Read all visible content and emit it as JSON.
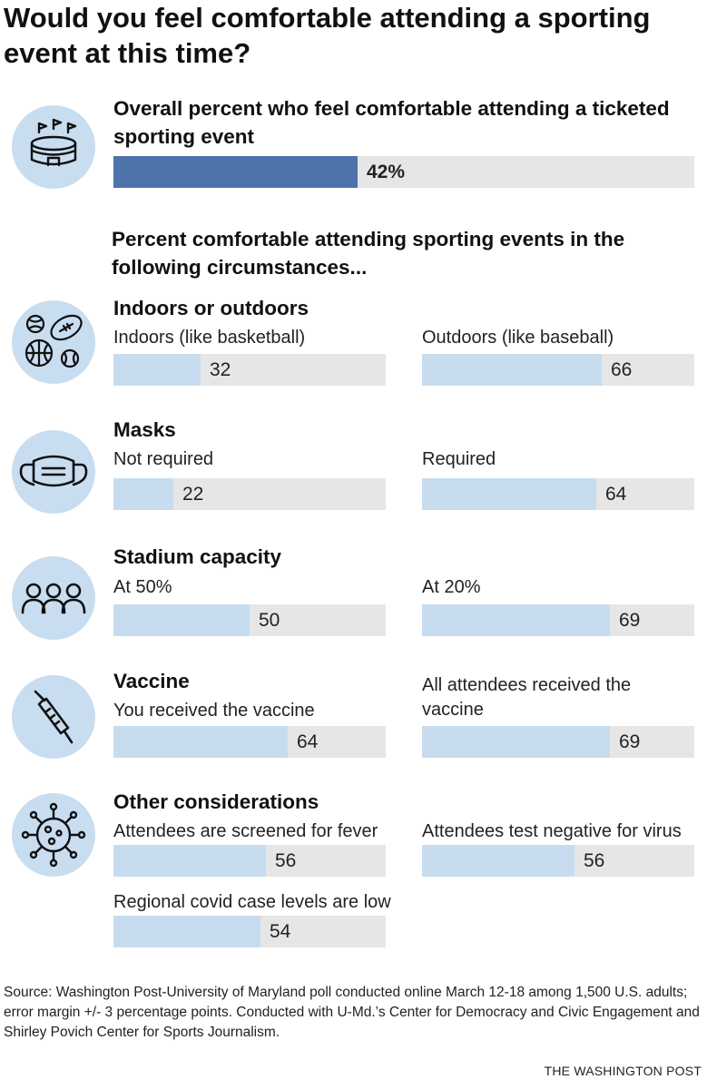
{
  "title": "Would you feel comfortable attending a sporting event at this time?",
  "overall": {
    "label": "Overall percent who feel comfortable attending a ticketed sporting event",
    "value": 42,
    "value_label": "42%"
  },
  "subtitle": "Percent comfortable attending sporting events in the following circumstances...",
  "source": "Source: Washington Post-University of Maryland poll conducted online March 12-18 among 1,500 U.S. adults; error margin +/- 3 percentage points. Conducted with U-Md.’s Center for Democracy and Civic Engagement and Shirley Povich Center for Sports Journalism.",
  "credit": "THE WASHINGTON POST",
  "colors": {
    "overall_bar": "#4d73aa",
    "item_bar": "#c7dcef",
    "track": "#e6e6e6",
    "icon_bg": "#c8ddf0"
  },
  "chart_data": {
    "type": "bar",
    "title": "Would you feel comfortable attending a sporting event at this time?",
    "unit": "percent",
    "xlim": [
      0,
      100
    ],
    "overall": {
      "category": "Overall percent who feel comfortable attending a ticketed sporting event",
      "value": 42
    },
    "sections": [
      {
        "name": "Indoors or outdoors",
        "icon": "sports-balls-icon",
        "items": [
          {
            "label": "Indoors (like basketball)",
            "value": 32
          },
          {
            "label": "Outdoors (like baseball)",
            "value": 66
          }
        ]
      },
      {
        "name": "Masks",
        "icon": "face-mask-icon",
        "items": [
          {
            "label": "Not required",
            "value": 22
          },
          {
            "label": "Required",
            "value": 64
          }
        ]
      },
      {
        "name": "Stadium capacity",
        "icon": "crowd-icon",
        "items": [
          {
            "label": "At 50%",
            "value": 50
          },
          {
            "label": "At 20%",
            "value": 69
          }
        ]
      },
      {
        "name": "Vaccine",
        "icon": "syringe-icon",
        "items": [
          {
            "label": "You received the vaccine",
            "value": 64
          },
          {
            "label": "All attendees received the vaccine",
            "value": 69
          }
        ]
      },
      {
        "name": "Other considerations",
        "icon": "virus-icon",
        "items": [
          {
            "label": "Attendees are screened for fever",
            "value": 56
          },
          {
            "label": "Attendees test negative for virus",
            "value": 56
          },
          {
            "label": "Regional covid case levels are low",
            "value": 54
          }
        ]
      }
    ]
  }
}
